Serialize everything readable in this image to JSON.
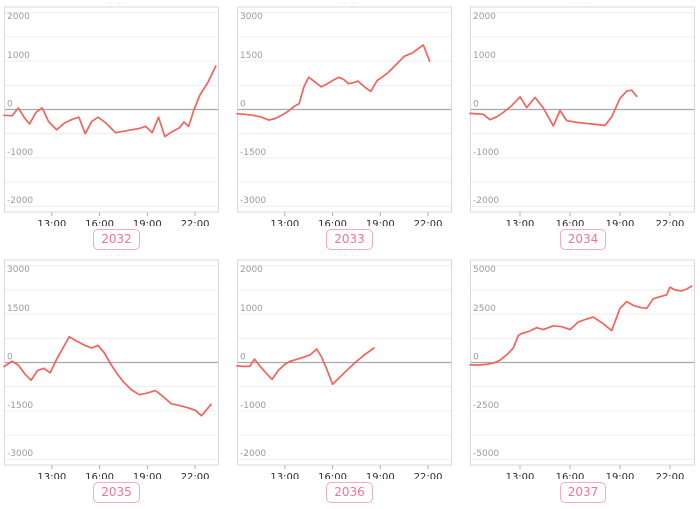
{
  "style_colors": {
    "line": "#f2635e",
    "label_text": "#ee7590",
    "label_border": "#f5aabf",
    "grid": "#ededed",
    "zero_line": "#a8a8a8",
    "plot_border": "#d9d9d9",
    "tick_stub": "#adadad",
    "y_tick_text": "#9b9b9b",
    "x_tick_text": "#2c2c2c",
    "title_fragment_color": "#c4c4c4"
  },
  "title_fragment": "·· ··",
  "chart_data": [
    {
      "type": "line",
      "label": "2032",
      "x_tick_labels": [
        "13:00",
        "16:00",
        "19:00",
        "22:00"
      ],
      "x_tick_hours": [
        13,
        16,
        19,
        22
      ],
      "xlim": [
        10,
        23.5
      ],
      "ylim": [
        -2000,
        2000
      ],
      "y_ticks": [
        -2000,
        -1000,
        0,
        1000,
        2000
      ],
      "x": [
        10.0,
        10.5,
        10.9,
        11.3,
        11.6,
        12.0,
        12.4,
        12.8,
        13.3,
        13.8,
        14.3,
        14.7,
        15.1,
        15.5,
        15.9,
        16.4,
        17.0,
        17.5,
        18.0,
        18.5,
        18.9,
        19.3,
        19.7,
        20.1,
        20.5,
        21.0,
        21.3,
        21.6,
        21.9,
        22.3,
        22.8,
        23.3
      ],
      "y": [
        -120,
        -130,
        30,
        -180,
        -300,
        -60,
        30,
        -250,
        -420,
        -280,
        -200,
        -160,
        -500,
        -250,
        -160,
        -280,
        -480,
        -450,
        -420,
        -390,
        -350,
        -480,
        -160,
        -560,
        -470,
        -380,
        -260,
        -350,
        -30,
        300,
        560,
        900
      ]
    },
    {
      "type": "line",
      "label": "2033",
      "x_tick_labels": [
        "13:00",
        "16:00",
        "19:00",
        "22:00"
      ],
      "x_tick_hours": [
        13,
        16,
        19,
        22
      ],
      "xlim": [
        10,
        23.5
      ],
      "ylim": [
        -3000,
        3000
      ],
      "y_ticks": [
        -3000,
        -1500,
        0,
        1500,
        3000
      ],
      "x": [
        10.0,
        10.5,
        11.0,
        11.5,
        12.0,
        12.4,
        12.8,
        13.2,
        13.6,
        13.9,
        14.2,
        14.5,
        14.9,
        15.3,
        15.6,
        16.0,
        16.4,
        16.7,
        17.0,
        17.3,
        17.6,
        18.0,
        18.4,
        18.8,
        19.1,
        19.5,
        20.0,
        20.5,
        21.0,
        21.4,
        21.7,
        22.1
      ],
      "y": [
        -130,
        -150,
        -180,
        -230,
        -330,
        -280,
        -180,
        -60,
        100,
        180,
        700,
        1000,
        850,
        700,
        780,
        900,
        1000,
        930,
        800,
        830,
        880,
        700,
        560,
        900,
        1000,
        1150,
        1400,
        1650,
        1750,
        1900,
        2000,
        1500
      ]
    },
    {
      "type": "line",
      "label": "2034",
      "x_tick_labels": [
        "13:00",
        "16:00",
        "19:00",
        "22:00"
      ],
      "x_tick_hours": [
        13,
        16,
        19,
        22
      ],
      "xlim": [
        10,
        23.5
      ],
      "ylim": [
        -2000,
        2000
      ],
      "y_ticks": [
        -2000,
        -1000,
        0,
        1000,
        2000
      ],
      "x": [
        10.0,
        10.4,
        10.8,
        11.2,
        11.6,
        12.0,
        12.5,
        13.0,
        13.4,
        13.9,
        14.4,
        15.0,
        15.4,
        15.8,
        16.3,
        17.0,
        17.6,
        18.1,
        18.5,
        19.0,
        19.4,
        19.7,
        20.0
      ],
      "y": [
        -80,
        -90,
        -100,
        -210,
        -150,
        -60,
        80,
        260,
        40,
        250,
        30,
        -340,
        -20,
        -230,
        -260,
        -290,
        -310,
        -330,
        -150,
        230,
        380,
        400,
        270
      ]
    },
    {
      "type": "line",
      "label": "2035",
      "x_tick_labels": [
        "13:00",
        "16:00",
        "19:00",
        "22:00"
      ],
      "x_tick_hours": [
        13,
        16,
        19,
        22
      ],
      "xlim": [
        10,
        23.5
      ],
      "ylim": [
        -3000,
        3000
      ],
      "y_ticks": [
        -3000,
        -1500,
        0,
        1500,
        3000
      ],
      "x": [
        10.0,
        10.5,
        10.9,
        11.3,
        11.7,
        12.1,
        12.5,
        12.9,
        13.3,
        13.7,
        14.1,
        14.5,
        15.0,
        15.5,
        15.9,
        16.3,
        16.7,
        17.1,
        17.5,
        18.0,
        18.5,
        19.0,
        19.5,
        20.0,
        20.5,
        21.0,
        21.5,
        22.0,
        22.4,
        23.0
      ],
      "y": [
        -130,
        40,
        -80,
        -350,
        -550,
        -250,
        -180,
        -320,
        100,
        450,
        800,
        680,
        550,
        450,
        530,
        300,
        -50,
        -350,
        -600,
        -850,
        -1000,
        -950,
        -870,
        -1060,
        -1280,
        -1330,
        -1400,
        -1480,
        -1650,
        -1300
      ]
    },
    {
      "type": "line",
      "label": "2036",
      "x_tick_labels": [
        "13:00",
        "16:00",
        "19:00",
        "22:00"
      ],
      "x_tick_hours": [
        13,
        16,
        19,
        22
      ],
      "xlim": [
        10,
        23.5
      ],
      "ylim": [
        -2000,
        2000
      ],
      "y_ticks": [
        -2000,
        -1000,
        0,
        1000,
        2000
      ],
      "x": [
        10.0,
        10.4,
        10.8,
        11.1,
        11.4,
        11.8,
        12.2,
        12.6,
        13.0,
        13.3,
        13.7,
        14.1,
        14.6,
        15.0,
        15.3,
        15.6,
        16.0,
        16.5,
        17.0,
        17.5,
        18.0,
        18.6
      ],
      "y": [
        -70,
        -80,
        -80,
        70,
        -60,
        -210,
        -350,
        -160,
        -40,
        20,
        60,
        100,
        160,
        280,
        120,
        -110,
        -450,
        -290,
        -130,
        20,
        160,
        300
      ]
    },
    {
      "type": "line",
      "label": "2037",
      "x_tick_labels": [
        "13:00",
        "16:00",
        "19:00",
        "22:00"
      ],
      "x_tick_hours": [
        13,
        16,
        19,
        22
      ],
      "xlim": [
        10,
        23.5
      ],
      "ylim": [
        -5000,
        5000
      ],
      "y_ticks": [
        -5000,
        -2500,
        0,
        2500,
        5000
      ],
      "x": [
        10.0,
        10.5,
        11.0,
        11.4,
        11.8,
        12.2,
        12.6,
        12.9,
        13.1,
        13.5,
        14.0,
        14.4,
        15.0,
        15.5,
        16.0,
        16.5,
        17.0,
        17.4,
        18.0,
        18.5,
        19.0,
        19.4,
        19.8,
        20.2,
        20.6,
        21.0,
        21.4,
        21.8,
        22.0,
        22.3,
        22.7,
        23.0,
        23.3
      ],
      "y": [
        -120,
        -130,
        -100,
        -30,
        120,
        400,
        750,
        1400,
        1500,
        1600,
        1800,
        1700,
        1900,
        1850,
        1700,
        2100,
        2250,
        2350,
        2000,
        1650,
        2800,
        3150,
        2950,
        2850,
        2800,
        3300,
        3400,
        3500,
        3900,
        3750,
        3700,
        3800,
        3950
      ]
    }
  ]
}
